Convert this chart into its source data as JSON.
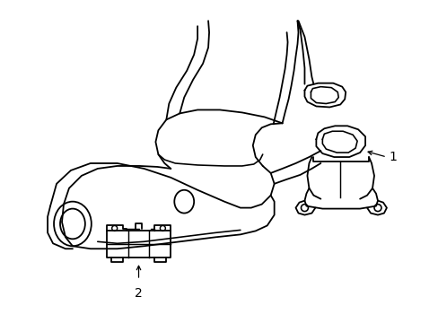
{
  "background_color": "#ffffff",
  "line_color": "#000000",
  "line_width": 1.3,
  "label_fontsize": 10,
  "figsize": [
    4.89,
    3.6
  ],
  "dpi": 100
}
